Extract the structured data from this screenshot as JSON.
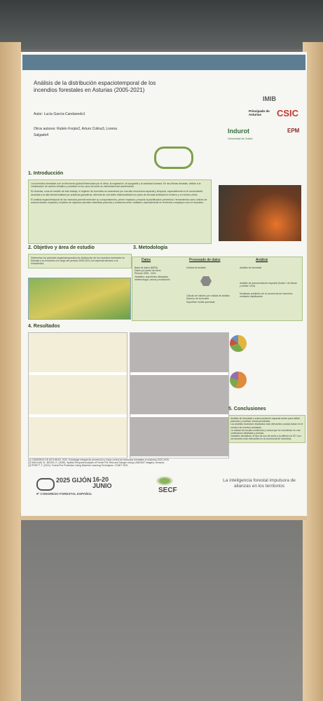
{
  "poster": {
    "title": "Análisis de la distribución espaciotemporal de los incendios forestales en Asturias (2005-2021)",
    "author": "Autor: Lucía García-Candanedo1",
    "other_authors": "Otros autores: Rubén Forján2, Arturo Colina3, Lorena Salgado4",
    "logos": [
      "IMIB",
      "Principado de Asturias",
      "CSIC",
      "Indurot",
      "Universidad de Oviedo",
      "EPM"
    ],
    "sections": {
      "intro": {
        "heading": "1. Introducción",
        "paragraphs": [
          "Los incendios forestales son un fenómeno global influenciado por el clima, la vegetación, la topografía y la actividad humana. En las últimas décadas, debido a la combinación de cambio climático y cambios en los usos del suelo su intensidad está aumentando.",
          "En Asturias, zona de estudio de este trabajo, el régimen de incendios se caracteriza por una alta recurrencia espacial y temporal, especialmente en el suroccidente, asociada a la alta intencionalidad por prácticas ganaderas. Además de una doble estacionalidad con picos de elevada actividad en invierno y en verano-otoño.",
          "El análisis espaciotemporal de los incendios permite entender su comportamiento, prever impactos y mejorar la planificación preventiva. Herramientas como índices de autocorrelación espacial y modelos de regresión permiten identificar patrones y relaciones entre variables, especialmente en territorios complejos como el asturiano."
        ]
      },
      "objective": {
        "heading": "2. Objetivo y área de estudio",
        "text": "Determinar los patrones espaciotemporales de distribución de los incendios forestales en Asturias y su evolución a lo largo del periodo 2005-2021 con especial atención a la reincidencia."
      },
      "methods": {
        "heading": "3. Metodología",
        "columns": [
          "Datos",
          "Procesado de datos",
          "Análisis"
        ],
        "data_items": [
          "Base de datos (BIIFA)",
          "Datos por punto de inicio",
          "Periodo 2005 - 2021",
          "Variables: superficies afectadas, meteorología, causa y motivación"
        ],
        "processing_items": [
          "Unidad de análisis",
          "Cálculo de valores por unidad de análisis",
          "Número de incendios",
          "Superficie media quemada"
        ],
        "analysis_items": [
          "Análisis de densidad",
          "Análisis de autocorrelación espacial (Índice I de Moran y clúster LISA)",
          "Modelado predictivo de la ocurrencia de incendios mediante clasificación"
        ]
      },
      "results": {
        "heading": "4. Resultados"
      },
      "conclusions": {
        "heading": "5. Conclusiones",
        "items": [
          "Análisis de densidad y autocorrelación espacial sirven para definir patrones y zonificar zonas prioritarias.",
          "Los análisis muestran resultados más relevantes cuando tratan en el número de eventos anotados.",
          "La unidad de escala condiciona y marca que se conviertan en una zonificación detallada y precisa.",
          "Variables climáticas, el tipo de uso de suelo y la altitud a la SIT son los factores más relevantes en la ocurrencia de incendios."
        ]
      }
    },
    "references": [
      "(1) GOBIERNO DE ASTURIAS. 2020. Estrategia integral de prevención y lucha contra los incendios forestales en Asturias 2020-2025.",
      "(2) MAGLAM, B., BIGGS, E. (2008). Spatial Temporal Analysis of Forest Fire Risk and Danger Using LANDSAT Imagery. Sensors.",
      "(3) PRIETT, T. (2021). Forest Fire Prediction Using Machine Learning Techniques. CONIT 2021."
    ],
    "footer": {
      "year_city": "2025 GIJÓN",
      "dates": "16-20 JUNIO",
      "congress": "9º CONGRESO FORESTAL ESPAÑOL",
      "society": "SECF",
      "slogan": "La inteligencia forestal impulsora de alianzas en los territorios"
    }
  }
}
